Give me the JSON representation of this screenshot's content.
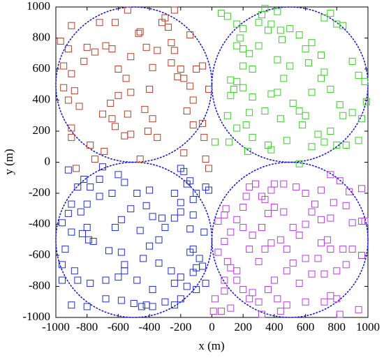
{
  "chart_data": {
    "type": "scatter",
    "xlabel": "x (m)",
    "ylabel": "y (m)",
    "xlim": [
      -1000,
      1000
    ],
    "ylim": [
      -1000,
      1000
    ],
    "xticks": [
      -1000,
      -800,
      -600,
      -400,
      -200,
      0,
      200,
      400,
      600,
      800,
      1000
    ],
    "yticks": [
      -1000,
      -800,
      -600,
      -400,
      -200,
      0,
      200,
      400,
      600,
      800,
      1000
    ],
    "circles": [
      {
        "x": -500,
        "y": 500,
        "r": 500,
        "color": "#1a1acc"
      },
      {
        "x": 500,
        "y": 500,
        "r": 500,
        "color": "#1a1acc"
      },
      {
        "x": -500,
        "y": -500,
        "r": 500,
        "color": "#1a1acc"
      },
      {
        "x": 500,
        "y": -500,
        "r": 500,
        "color": "#1a1acc"
      }
    ],
    "series": [
      {
        "color": "#b0402a",
        "x": [
          -970,
          -900,
          -920,
          -950,
          -900,
          -880,
          -950,
          -920,
          -850,
          -900,
          -900,
          -820,
          -800,
          -750,
          -720,
          -680,
          -640,
          -620,
          -600,
          -550,
          -520,
          -520,
          -600,
          -650,
          -700,
          -640,
          -620,
          -560,
          -540,
          -470,
          -460,
          -420,
          -380,
          -400,
          -430,
          -380,
          -410,
          -350,
          -320,
          -300,
          -280,
          -260,
          -240,
          -220,
          -200,
          -180,
          -140,
          -100,
          -60,
          -120,
          -160,
          -120,
          -60,
          -20,
          -140,
          -260,
          -540,
          -240,
          -50,
          -40,
          -180,
          -350,
          -460,
          -520,
          -690,
          -750,
          -780,
          -870,
          -20
        ],
        "y": [
          780,
          880,
          730,
          620,
          570,
          460,
          480,
          400,
          360,
          220,
          160,
          650,
          740,
          710,
          900,
          750,
          730,
          900,
          600,
          540,
          680,
          450,
          430,
          380,
          310,
          280,
          230,
          170,
          310,
          830,
          840,
          740,
          610,
          470,
          340,
          280,
          200,
          720,
          900,
          930,
          870,
          640,
          720,
          550,
          600,
          540,
          490,
          600,
          620,
          400,
          330,
          240,
          250,
          470,
          820,
          770,
          980,
          980,
          160,
          20,
          60,
          160,
          20,
          180,
          70,
          20,
          110,
          -40,
          -40
        ]
      },
      {
        "color": "#3ccc2a",
        "x": [
          60,
          100,
          160,
          180,
          200,
          160,
          200,
          240,
          300,
          300,
          320,
          340,
          360,
          380,
          420,
          440,
          450,
          500,
          560,
          600,
          640,
          700,
          720,
          760,
          800,
          840,
          900,
          940,
          980,
          720,
          620,
          700,
          640,
          760,
          420,
          380,
          460,
          500,
          420,
          260,
          200,
          160,
          140,
          120,
          200,
          260,
          240,
          120,
          100,
          160,
          220,
          260,
          340,
          440,
          520,
          560,
          600,
          580,
          680,
          720,
          760,
          820,
          840,
          900,
          960,
          990,
          480,
          640,
          800,
          860,
          940,
          560,
          230,
          380,
          360,
          110,
          20
        ],
        "y": [
          960,
          940,
          890,
          800,
          860,
          750,
          730,
          700,
          750,
          900,
          950,
          990,
          850,
          890,
          970,
          850,
          790,
          860,
          820,
          730,
          770,
          690,
          930,
          960,
          890,
          880,
          650,
          560,
          520,
          580,
          640,
          540,
          450,
          470,
          450,
          440,
          540,
          620,
          660,
          600,
          620,
          520,
          470,
          530,
          480,
          420,
          320,
          430,
          300,
          220,
          240,
          160,
          330,
          280,
          380,
          330,
          300,
          240,
          180,
          130,
          200,
          370,
          300,
          320,
          280,
          390,
          140,
          100,
          110,
          110,
          140,
          -10,
          70,
          80,
          110,
          130,
          130
        ]
      },
      {
        "color": "#1f2fcc",
        "x": [
          -920,
          -820,
          -860,
          -780,
          -720,
          -700,
          -600,
          -560,
          -640,
          -720,
          -800,
          -840,
          -900,
          -920,
          -960,
          -800,
          -830,
          -790,
          -900,
          -940,
          -960,
          -880,
          -860,
          -960,
          -780,
          -680,
          -600,
          -560,
          -560,
          -580,
          -660,
          -760,
          -620,
          -580,
          -520,
          -480,
          -400,
          -420,
          -380,
          -460,
          -400,
          -340,
          -300,
          -320,
          -240,
          -200,
          -200,
          -240,
          -160,
          -180,
          -200,
          -140,
          -100,
          -120,
          -40,
          -20,
          -120,
          -140,
          -120,
          -80,
          -100,
          -60,
          -120,
          -200,
          -240,
          -260,
          -340,
          -440,
          -480,
          -380,
          -300,
          -420,
          -500,
          -580,
          -680,
          -800,
          -900,
          -240,
          -380,
          -450,
          -160,
          -100,
          -40,
          -200,
          -140,
          -50
        ],
        "y": [
          -50,
          -110,
          -160,
          -160,
          -110,
          -30,
          -80,
          -130,
          -200,
          -220,
          -270,
          -320,
          -270,
          -330,
          -390,
          -420,
          -460,
          -500,
          -450,
          -560,
          -660,
          -700,
          -760,
          -760,
          -780,
          -760,
          -740,
          -700,
          -660,
          -580,
          -570,
          -510,
          -420,
          -370,
          -300,
          -200,
          -180,
          -280,
          -350,
          -440,
          -540,
          -500,
          -420,
          -360,
          -360,
          -320,
          -260,
          -200,
          -140,
          -60,
          -40,
          -120,
          -200,
          -240,
          -160,
          -180,
          -340,
          -430,
          -560,
          -620,
          -680,
          -670,
          -710,
          -740,
          -780,
          -700,
          -650,
          -620,
          -760,
          -820,
          -900,
          -920,
          -910,
          -890,
          -880,
          -930,
          -920,
          -920,
          -930,
          -930,
          -800,
          -820,
          -780,
          -880,
          -580,
          -450
        ]
      },
      {
        "color": "#b440dc",
        "x": [
          40,
          80,
          90,
          160,
          200,
          220,
          240,
          280,
          320,
          340,
          380,
          400,
          460,
          540,
          600,
          660,
          700,
          760,
          820,
          880,
          960,
          960,
          980,
          900,
          860,
          780,
          760,
          700,
          640,
          600,
          560,
          520,
          460,
          400,
          360,
          320,
          260,
          200,
          120,
          80,
          40,
          100,
          120,
          160,
          240,
          300,
          340,
          380,
          440,
          480,
          520,
          600,
          680,
          700,
          740,
          760,
          840,
          860,
          900,
          960,
          800,
          720,
          640,
          560,
          480,
          400,
          360,
          260,
          200,
          160,
          80,
          80,
          20,
          10,
          60,
          120,
          240,
          300,
          320,
          420,
          440,
          480,
          600,
          720,
          760,
          800,
          940,
          820
        ],
        "y": [
          -380,
          -340,
          -300,
          -370,
          -290,
          -220,
          -160,
          -140,
          -220,
          -240,
          -180,
          -140,
          -140,
          -160,
          -200,
          -270,
          -180,
          -80,
          -120,
          -190,
          -170,
          -380,
          -380,
          -390,
          -280,
          -260,
          -360,
          -370,
          -320,
          -400,
          -470,
          -420,
          -320,
          -290,
          -330,
          -420,
          -470,
          -420,
          -450,
          -510,
          -580,
          -640,
          -680,
          -700,
          -560,
          -640,
          -560,
          -520,
          -500,
          -560,
          -650,
          -620,
          -620,
          -520,
          -500,
          -560,
          -560,
          -660,
          -560,
          -600,
          -700,
          -720,
          -720,
          -780,
          -700,
          -760,
          -820,
          -840,
          -820,
          -760,
          -760,
          -830,
          -880,
          -960,
          -960,
          -940,
          -880,
          -900,
          -980,
          -880,
          -960,
          -920,
          -900,
          -900,
          -860,
          -880,
          -950,
          -980
        ]
      }
    ]
  }
}
